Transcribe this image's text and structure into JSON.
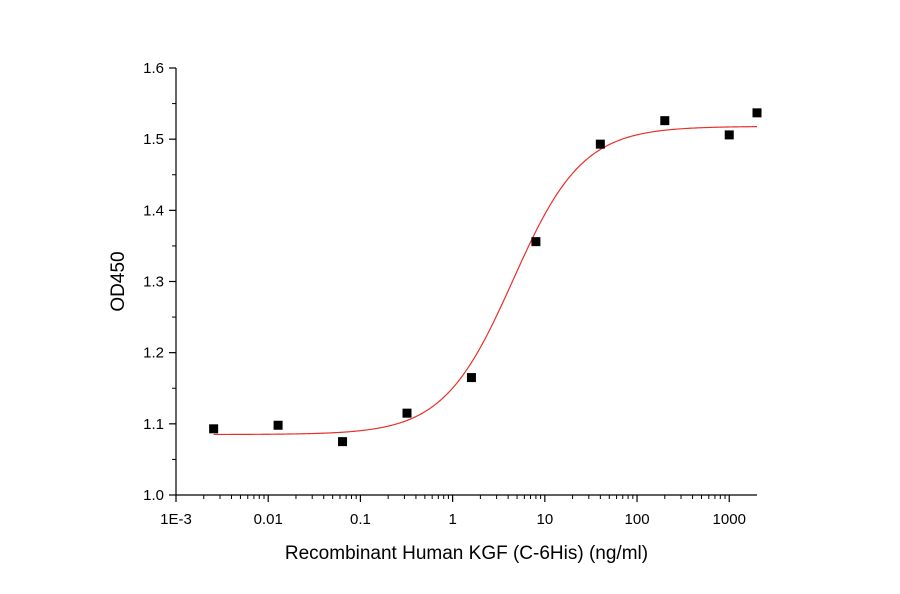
{
  "chart_data": {
    "type": "scatter",
    "xlabel": "Recombinant Human KGF (C-6His) (ng/ml)",
    "ylabel": "OD450",
    "x_scale": "log",
    "xlim": [
      0.001,
      2000
    ],
    "ylim": [
      1.0,
      1.6
    ],
    "x_ticks": [
      {
        "value": 0.001,
        "label": "1E-3"
      },
      {
        "value": 0.01,
        "label": "0.01"
      },
      {
        "value": 0.1,
        "label": "0.1"
      },
      {
        "value": 1,
        "label": "1"
      },
      {
        "value": 10,
        "label": "10"
      },
      {
        "value": 100,
        "label": "100"
      },
      {
        "value": 1000,
        "label": "1000"
      }
    ],
    "y_ticks": [
      {
        "value": 1.0,
        "label": "1.0"
      },
      {
        "value": 1.1,
        "label": "1.1"
      },
      {
        "value": 1.2,
        "label": "1.2"
      },
      {
        "value": 1.3,
        "label": "1.3"
      },
      {
        "value": 1.4,
        "label": "1.4"
      },
      {
        "value": 1.5,
        "label": "1.5"
      },
      {
        "value": 1.6,
        "label": "1.6"
      }
    ],
    "grid": false,
    "points": [
      {
        "x": 0.00256,
        "y": 1.093
      },
      {
        "x": 0.0128,
        "y": 1.098
      },
      {
        "x": 0.064,
        "y": 1.075
      },
      {
        "x": 0.32,
        "y": 1.115
      },
      {
        "x": 1.6,
        "y": 1.165
      },
      {
        "x": 8,
        "y": 1.356
      },
      {
        "x": 40,
        "y": 1.493
      },
      {
        "x": 200,
        "y": 1.526
      },
      {
        "x": 1000,
        "y": 1.506
      },
      {
        "x": 2000,
        "y": 1.537
      }
    ],
    "fit": {
      "model": "4PL",
      "bottom": 1.085,
      "top": 1.518,
      "ec50": 4.5,
      "hill": 1.15,
      "x_range": [
        0.00256,
        2000
      ]
    },
    "colors": {
      "points": "#000000",
      "fit_line": "#e8302a",
      "axes": "#000000"
    }
  }
}
